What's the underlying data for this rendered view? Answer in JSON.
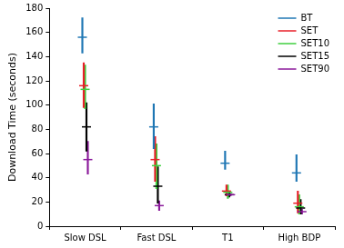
{
  "chart_data": {
    "type": "errorbar",
    "y_label": "Download Time (seconds)",
    "categories": [
      "Slow DSL",
      "Fast DSL",
      "T1",
      "High BDP"
    ],
    "ylim": [
      0,
      180
    ],
    "yticks": [
      0,
      20,
      40,
      60,
      80,
      100,
      120,
      140,
      160,
      180
    ],
    "grid": false,
    "legend": "upper right",
    "series": [
      {
        "name": "BT",
        "color": "#1f77b4",
        "values": [
          156,
          82,
          52,
          44
        ],
        "lower": [
          143,
          64,
          47,
          37
        ],
        "upper": [
          172,
          101,
          62,
          59
        ]
      },
      {
        "name": "SET",
        "color": "#e8202a",
        "values": [
          116,
          55,
          29,
          19
        ],
        "lower": [
          98,
          37,
          25,
          11
        ],
        "upper": [
          135,
          74,
          34,
          29
        ]
      },
      {
        "name": "SET10",
        "color": "#3fcf3f",
        "values": [
          113,
          50,
          28,
          16
        ],
        "lower": [
          97,
          31,
          23,
          10
        ],
        "upper": [
          133,
          68,
          34,
          26
        ]
      },
      {
        "name": "SET15",
        "color": "#000000",
        "values": [
          82,
          33,
          26,
          15
        ],
        "lower": [
          62,
          19,
          24,
          10
        ],
        "upper": [
          102,
          49,
          28,
          22
        ]
      },
      {
        "name": "SET90",
        "color": "#8b1a9b",
        "values": [
          55,
          17,
          26,
          12
        ],
        "lower": [
          43,
          13,
          25,
          10
        ],
        "upper": [
          70,
          21,
          27,
          14
        ]
      }
    ]
  }
}
